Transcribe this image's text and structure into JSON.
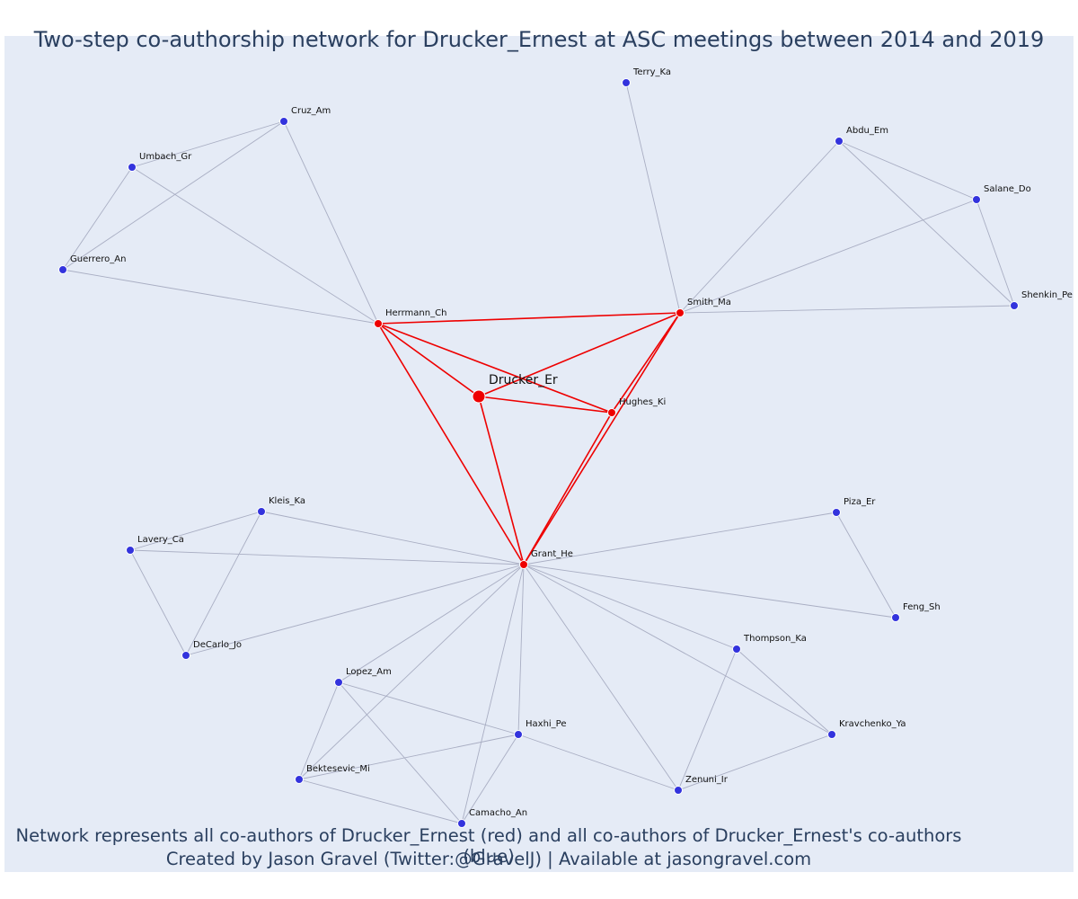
{
  "title": "Two-step co-authorship network for Drucker_Ernest at ASC meetings between 2014 and 2019",
  "footer": {
    "line1": "Network represents all co-authors of Drucker_Ernest (red) and all co-authors of Drucker_Ernest's co-authors (blue)",
    "line2": "Created by Jason Gravel (Twitter:@GravelJ) | Available at jasongravel.com"
  },
  "colors": {
    "background": "#e5ebf6",
    "red": "#ee0000",
    "blue": "#3333dd",
    "gray_edge": "#a9aec3",
    "red_edge": "#ee0000",
    "text": "#2a3f5f"
  },
  "nodes": [
    {
      "id": "Drucker_Er",
      "group": "focal"
    },
    {
      "id": "Herrmann_Ch",
      "group": "red"
    },
    {
      "id": "Smith_Ma",
      "group": "red"
    },
    {
      "id": "Hughes_Ki",
      "group": "red"
    },
    {
      "id": "Grant_He",
      "group": "red"
    },
    {
      "id": "Terry_Ka",
      "group": "blue"
    },
    {
      "id": "Cruz_Am",
      "group": "blue"
    },
    {
      "id": "Umbach_Gr",
      "group": "blue"
    },
    {
      "id": "Guerrero_An",
      "group": "blue"
    },
    {
      "id": "Abdu_Em",
      "group": "blue"
    },
    {
      "id": "Salane_Do",
      "group": "blue"
    },
    {
      "id": "Shenkin_Pe",
      "group": "blue"
    },
    {
      "id": "Kleis_Ka",
      "group": "blue"
    },
    {
      "id": "Lavery_Ca",
      "group": "blue"
    },
    {
      "id": "DeCarlo_Jo",
      "group": "blue"
    },
    {
      "id": "Piza_Er",
      "group": "blue"
    },
    {
      "id": "Feng_Sh",
      "group": "blue"
    },
    {
      "id": "Thompson_Ka",
      "group": "blue"
    },
    {
      "id": "Kravchenko_Ya",
      "group": "blue"
    },
    {
      "id": "Lopez_Am",
      "group": "blue"
    },
    {
      "id": "Haxhi_Pe",
      "group": "blue"
    },
    {
      "id": "Bektesevic_Mi",
      "group": "blue"
    },
    {
      "id": "Zenuni_Ir",
      "group": "blue"
    },
    {
      "id": "Camacho_An",
      "group": "blue"
    }
  ],
  "edges": [
    {
      "s": "Drucker_Er",
      "t": "Herrmann_Ch",
      "type": "red"
    },
    {
      "s": "Drucker_Er",
      "t": "Smith_Ma",
      "type": "red"
    },
    {
      "s": "Drucker_Er",
      "t": "Hughes_Ki",
      "type": "red"
    },
    {
      "s": "Drucker_Er",
      "t": "Grant_He",
      "type": "red"
    },
    {
      "s": "Herrmann_Ch",
      "t": "Smith_Ma",
      "type": "red"
    },
    {
      "s": "Herrmann_Ch",
      "t": "Hughes_Ki",
      "type": "red"
    },
    {
      "s": "Herrmann_Ch",
      "t": "Grant_He",
      "type": "red"
    },
    {
      "s": "Smith_Ma",
      "t": "Hughes_Ki",
      "type": "red"
    },
    {
      "s": "Smith_Ma",
      "t": "Grant_He",
      "type": "red"
    },
    {
      "s": "Hughes_Ki",
      "t": "Grant_He",
      "type": "red"
    },
    {
      "s": "Herrmann_Ch",
      "t": "Cruz_Am",
      "type": "gray"
    },
    {
      "s": "Herrmann_Ch",
      "t": "Umbach_Gr",
      "type": "gray"
    },
    {
      "s": "Herrmann_Ch",
      "t": "Guerrero_An",
      "type": "gray"
    },
    {
      "s": "Cruz_Am",
      "t": "Umbach_Gr",
      "type": "gray"
    },
    {
      "s": "Cruz_Am",
      "t": "Guerrero_An",
      "type": "gray"
    },
    {
      "s": "Umbach_Gr",
      "t": "Guerrero_An",
      "type": "gray"
    },
    {
      "s": "Smith_Ma",
      "t": "Terry_Ka",
      "type": "gray"
    },
    {
      "s": "Smith_Ma",
      "t": "Abdu_Em",
      "type": "gray"
    },
    {
      "s": "Smith_Ma",
      "t": "Salane_Do",
      "type": "gray"
    },
    {
      "s": "Smith_Ma",
      "t": "Shenkin_Pe",
      "type": "gray"
    },
    {
      "s": "Abdu_Em",
      "t": "Salane_Do",
      "type": "gray"
    },
    {
      "s": "Abdu_Em",
      "t": "Shenkin_Pe",
      "type": "gray"
    },
    {
      "s": "Salane_Do",
      "t": "Shenkin_Pe",
      "type": "gray"
    },
    {
      "s": "Grant_He",
      "t": "Kleis_Ka",
      "type": "gray"
    },
    {
      "s": "Grant_He",
      "t": "Lavery_Ca",
      "type": "gray"
    },
    {
      "s": "Grant_He",
      "t": "DeCarlo_Jo",
      "type": "gray"
    },
    {
      "s": "Kleis_Ka",
      "t": "Lavery_Ca",
      "type": "gray"
    },
    {
      "s": "Kleis_Ka",
      "t": "DeCarlo_Jo",
      "type": "gray"
    },
    {
      "s": "Lavery_Ca",
      "t": "DeCarlo_Jo",
      "type": "gray"
    },
    {
      "s": "Grant_He",
      "t": "Piza_Er",
      "type": "gray"
    },
    {
      "s": "Grant_He",
      "t": "Feng_Sh",
      "type": "gray"
    },
    {
      "s": "Piza_Er",
      "t": "Feng_Sh",
      "type": "gray"
    },
    {
      "s": "Grant_He",
      "t": "Thompson_Ka",
      "type": "gray"
    },
    {
      "s": "Grant_He",
      "t": "Kravchenko_Ya",
      "type": "gray"
    },
    {
      "s": "Grant_He",
      "t": "Zenuni_Ir",
      "type": "gray"
    },
    {
      "s": "Thompson_Ka",
      "t": "Kravchenko_Ya",
      "type": "gray"
    },
    {
      "s": "Thompson_Ka",
      "t": "Zenuni_Ir",
      "type": "gray"
    },
    {
      "s": "Kravchenko_Ya",
      "t": "Zenuni_Ir",
      "type": "gray"
    },
    {
      "s": "Grant_He",
      "t": "Lopez_Am",
      "type": "gray"
    },
    {
      "s": "Grant_He",
      "t": "Haxhi_Pe",
      "type": "gray"
    },
    {
      "s": "Grant_He",
      "t": "Bektesevic_Mi",
      "type": "gray"
    },
    {
      "s": "Grant_He",
      "t": "Camacho_An",
      "type": "gray"
    },
    {
      "s": "Lopez_Am",
      "t": "Haxhi_Pe",
      "type": "gray"
    },
    {
      "s": "Lopez_Am",
      "t": "Bektesevic_Mi",
      "type": "gray"
    },
    {
      "s": "Lopez_Am",
      "t": "Camacho_An",
      "type": "gray"
    },
    {
      "s": "Haxhi_Pe",
      "t": "Bektesevic_Mi",
      "type": "gray"
    },
    {
      "s": "Haxhi_Pe",
      "t": "Camacho_An",
      "type": "gray"
    },
    {
      "s": "Haxhi_Pe",
      "t": "Zenuni_Ir",
      "type": "gray"
    },
    {
      "s": "Bektesevic_Mi",
      "t": "Camacho_An",
      "type": "gray"
    }
  ]
}
